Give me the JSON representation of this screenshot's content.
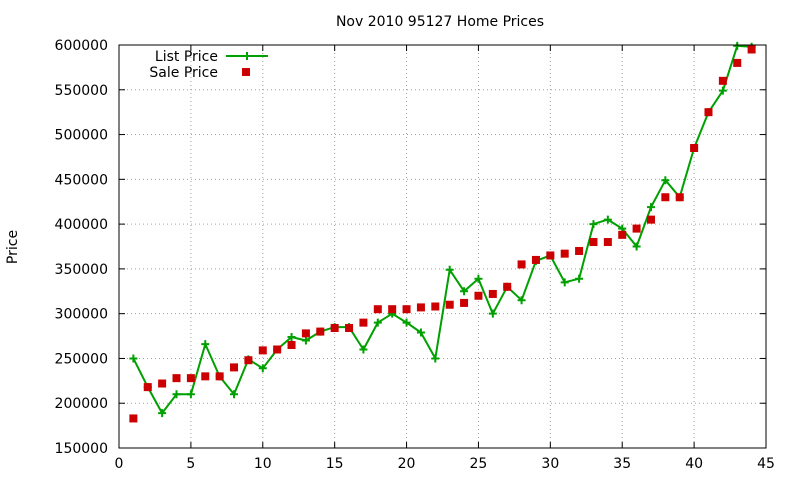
{
  "chart_data": {
    "type": "line",
    "title": "Nov 2010 95127 Home Prices",
    "xlabel": "",
    "ylabel": "Price",
    "xlim": [
      0,
      45
    ],
    "ylim": [
      150000,
      600000
    ],
    "xticks": [
      0,
      5,
      10,
      15,
      20,
      25,
      30,
      35,
      40,
      45
    ],
    "yticks": [
      150000,
      200000,
      250000,
      300000,
      350000,
      400000,
      450000,
      500000,
      550000,
      600000
    ],
    "grid": true,
    "legend_position": "top-left",
    "series": [
      {
        "name": "List Price",
        "style": "line-plus",
        "color": "#00a000",
        "x": [
          1,
          2,
          3,
          4,
          5,
          6,
          7,
          8,
          9,
          10,
          11,
          12,
          13,
          14,
          15,
          16,
          17,
          18,
          19,
          20,
          21,
          22,
          23,
          24,
          25,
          26,
          27,
          28,
          29,
          30,
          31,
          32,
          33,
          34,
          35,
          36,
          37,
          38,
          39,
          40,
          41,
          42,
          43,
          44
        ],
        "values": [
          250000,
          218000,
          189000,
          210000,
          210000,
          266000,
          230000,
          210000,
          249000,
          239000,
          260000,
          274000,
          270000,
          280000,
          285000,
          285000,
          260000,
          290000,
          300000,
          290000,
          279000,
          250000,
          349000,
          325000,
          339000,
          300000,
          330000,
          315000,
          359000,
          365000,
          335000,
          339000,
          400000,
          405000,
          395000,
          375000,
          419000,
          449000,
          430000,
          485000,
          525000,
          549000,
          599000,
          598000
        ]
      },
      {
        "name": "Sale Price",
        "style": "square-markers",
        "color": "#cc0000",
        "x": [
          1,
          2,
          3,
          4,
          5,
          6,
          7,
          8,
          9,
          10,
          11,
          12,
          13,
          14,
          15,
          16,
          17,
          18,
          19,
          20,
          21,
          22,
          23,
          24,
          25,
          26,
          27,
          28,
          29,
          30,
          31,
          32,
          33,
          34,
          35,
          36,
          37,
          38,
          39,
          40,
          41,
          42,
          43,
          44
        ],
        "values": [
          183000,
          218000,
          222000,
          228000,
          228000,
          230000,
          230000,
          240000,
          248000,
          259000,
          260000,
          265000,
          278000,
          280000,
          284000,
          284000,
          290000,
          305000,
          305000,
          305000,
          307000,
          308000,
          310000,
          312000,
          320000,
          322000,
          330000,
          355000,
          360000,
          365000,
          367000,
          370000,
          380000,
          380000,
          388000,
          395000,
          405000,
          430000,
          430000,
          485000,
          525000,
          560000,
          580000,
          595000
        ]
      }
    ]
  }
}
